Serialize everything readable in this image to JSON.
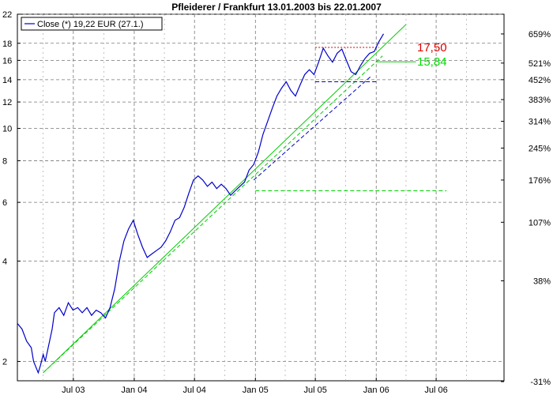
{
  "chart_data": {
    "type": "line",
    "title": "Pfleiderer / Frankfurt 13.01.2003 bis 22.01.2007",
    "legend": {
      "label": "Close (*) 19,22 EUR (27.1.)",
      "placement": "top-left"
    },
    "y_scale": "log",
    "ylim": [
      1.75,
      22
    ],
    "xlim": [
      "2003-01-13",
      "2007-01-22"
    ],
    "grid": true,
    "x_ticks": [
      {
        "date": "2003-07-01",
        "label": "Jul 03"
      },
      {
        "date": "2004-01-01",
        "label": "Jan 04"
      },
      {
        "date": "2004-07-01",
        "label": "Jul 04"
      },
      {
        "date": "2005-01-01",
        "label": "Jan 05"
      },
      {
        "date": "2005-07-01",
        "label": "Jul 05"
      },
      {
        "date": "2006-01-01",
        "label": "Jan 06"
      },
      {
        "date": "2006-07-01",
        "label": "Jul 06"
      }
    ],
    "y_ticks_left": [
      {
        "value": 2,
        "label": "2"
      },
      {
        "value": 4,
        "label": "4"
      },
      {
        "value": 6,
        "label": "6"
      },
      {
        "value": 8,
        "label": "8"
      },
      {
        "value": 10,
        "label": "10"
      },
      {
        "value": 12,
        "label": "12"
      },
      {
        "value": 14,
        "label": "14"
      },
      {
        "value": 16,
        "label": "16"
      },
      {
        "value": 18,
        "label": "18"
      },
      {
        "value": 22,
        "label": "22"
      }
    ],
    "y_ticks_right": [
      {
        "value": 1.74,
        "label": "-31%"
      },
      {
        "value": 3.49,
        "label": "38%"
      },
      {
        "value": 5.23,
        "label": "107%"
      },
      {
        "value": 7.0,
        "label": "176%"
      },
      {
        "value": 8.73,
        "label": "245%"
      },
      {
        "value": 10.5,
        "label": "314%"
      },
      {
        "value": 12.2,
        "label": "383%"
      },
      {
        "value": 14.0,
        "label": "452%"
      },
      {
        "value": 15.7,
        "label": "521%"
      },
      {
        "value": 19.2,
        "label": "659%"
      }
    ],
    "series": [
      {
        "name": "Close (*) 19,22 EUR (27.1.)",
        "color": "#0000cc",
        "points": [
          [
            "2003-01-13",
            2.6
          ],
          [
            "2003-01-27",
            2.5
          ],
          [
            "2003-02-10",
            2.3
          ],
          [
            "2003-02-24",
            2.2
          ],
          [
            "2003-03-03",
            2.0
          ],
          [
            "2003-03-17",
            1.85
          ],
          [
            "2003-03-24",
            1.95
          ],
          [
            "2003-04-01",
            2.1
          ],
          [
            "2003-04-07",
            2.0
          ],
          [
            "2003-04-14",
            2.15
          ],
          [
            "2003-04-28",
            2.5
          ],
          [
            "2003-05-05",
            2.8
          ],
          [
            "2003-05-19",
            2.9
          ],
          [
            "2003-06-02",
            2.75
          ],
          [
            "2003-06-16",
            3.0
          ],
          [
            "2003-06-30",
            2.85
          ],
          [
            "2003-07-14",
            2.9
          ],
          [
            "2003-07-28",
            2.8
          ],
          [
            "2003-08-11",
            2.9
          ],
          [
            "2003-08-25",
            2.75
          ],
          [
            "2003-09-08",
            2.85
          ],
          [
            "2003-09-22",
            2.8
          ],
          [
            "2003-10-06",
            2.7
          ],
          [
            "2003-10-20",
            2.9
          ],
          [
            "2003-11-03",
            3.3
          ],
          [
            "2003-11-17",
            4.0
          ],
          [
            "2003-12-01",
            4.6
          ],
          [
            "2003-12-15",
            5.0
          ],
          [
            "2003-12-29",
            5.3
          ],
          [
            "2004-01-12",
            4.8
          ],
          [
            "2004-01-26",
            4.4
          ],
          [
            "2004-02-09",
            4.1
          ],
          [
            "2004-02-23",
            4.2
          ],
          [
            "2004-03-08",
            4.3
          ],
          [
            "2004-03-22",
            4.4
          ],
          [
            "2004-04-05",
            4.6
          ],
          [
            "2004-04-19",
            4.9
          ],
          [
            "2004-05-03",
            5.3
          ],
          [
            "2004-05-17",
            5.4
          ],
          [
            "2004-05-31",
            5.8
          ],
          [
            "2004-06-14",
            6.4
          ],
          [
            "2004-06-28",
            7.0
          ],
          [
            "2004-07-12",
            7.2
          ],
          [
            "2004-07-26",
            7.0
          ],
          [
            "2004-08-09",
            6.7
          ],
          [
            "2004-08-23",
            6.9
          ],
          [
            "2004-09-06",
            6.6
          ],
          [
            "2004-09-20",
            6.8
          ],
          [
            "2004-10-04",
            6.6
          ],
          [
            "2004-10-18",
            6.3
          ],
          [
            "2004-11-01",
            6.5
          ],
          [
            "2004-11-15",
            6.7
          ],
          [
            "2004-11-29",
            6.9
          ],
          [
            "2004-12-13",
            7.5
          ],
          [
            "2004-12-27",
            7.8
          ],
          [
            "2005-01-10",
            8.5
          ],
          [
            "2005-01-24",
            9.6
          ],
          [
            "2005-02-07",
            10.5
          ],
          [
            "2005-02-21",
            11.5
          ],
          [
            "2005-03-07",
            12.5
          ],
          [
            "2005-03-21",
            13.2
          ],
          [
            "2005-04-04",
            13.8
          ],
          [
            "2005-04-18",
            13.0
          ],
          [
            "2005-05-02",
            12.5
          ],
          [
            "2005-05-16",
            13.5
          ],
          [
            "2005-05-30",
            14.5
          ],
          [
            "2005-06-13",
            15.0
          ],
          [
            "2005-06-27",
            14.5
          ],
          [
            "2005-07-11",
            15.8
          ],
          [
            "2005-07-25",
            17.4
          ],
          [
            "2005-08-08",
            16.5
          ],
          [
            "2005-08-22",
            15.8
          ],
          [
            "2005-09-05",
            16.8
          ],
          [
            "2005-09-19",
            17.3
          ],
          [
            "2005-10-03",
            16.0
          ],
          [
            "2005-10-17",
            14.8
          ],
          [
            "2005-10-31",
            14.5
          ],
          [
            "2005-11-14",
            15.4
          ],
          [
            "2005-11-28",
            16.2
          ],
          [
            "2005-12-12",
            16.8
          ],
          [
            "2005-12-26",
            17.0
          ],
          [
            "2006-01-09",
            18.2
          ],
          [
            "2006-01-23",
            19.22
          ]
        ]
      }
    ],
    "trendlines": [
      {
        "color": "#00cc00",
        "style": "solid",
        "points": [
          [
            "2003-04-01",
            1.85
          ],
          [
            "2006-04-01",
            20.5
          ]
        ]
      },
      {
        "color": "#00cc00",
        "style": "dashed",
        "points": [
          [
            "2003-04-01",
            1.85
          ],
          [
            "2006-01-20",
            16.5
          ]
        ]
      },
      {
        "color": "#0000cc",
        "style": "dashed",
        "points": [
          [
            "2004-12-27",
            7.0
          ],
          [
            "2005-12-15",
            14.3
          ]
        ]
      },
      {
        "color": "#00cc00",
        "style": "solid",
        "points": [
          [
            "2006-01-01",
            15.84
          ],
          [
            "2006-05-01",
            15.84
          ]
        ]
      },
      {
        "color": "#00cc00",
        "style": "dashed",
        "points": [
          [
            "2005-01-01",
            6.5
          ],
          [
            "2006-08-01",
            6.5
          ]
        ]
      },
      {
        "color": "#0000cc",
        "style": "dashed",
        "points": [
          [
            "2005-07-01",
            13.8
          ],
          [
            "2006-01-01",
            13.8
          ]
        ]
      },
      {
        "color": "#cc0000",
        "style": "dotted",
        "points": [
          [
            "2005-07-01",
            17.5
          ],
          [
            "2006-01-10",
            17.5
          ]
        ]
      }
    ],
    "annotations": [
      {
        "text": "17,50",
        "value": 17.5,
        "color": "#dd0000"
      },
      {
        "text": "15,84",
        "value": 15.84,
        "color": "#00dd00"
      }
    ]
  }
}
